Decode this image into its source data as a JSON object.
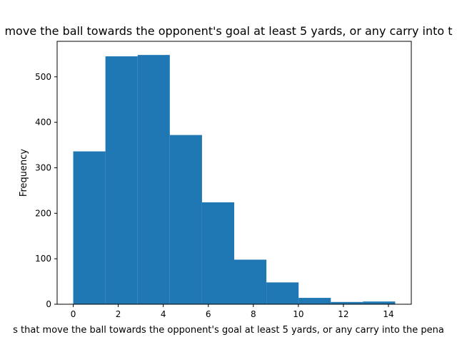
{
  "chart_data": {
    "type": "bar",
    "title": "move the ball towards the opponent's goal at least 5 yards, or any carry into t",
    "xlabel": "s that move the ball towards the opponent's goal at least 5 yards, or any carry into the pena",
    "ylabel": "Frequency",
    "bins": [
      {
        "start": 0.0,
        "end": 1.43,
        "count": 336
      },
      {
        "start": 1.43,
        "end": 2.86,
        "count": 545
      },
      {
        "start": 2.86,
        "end": 4.29,
        "count": 548
      },
      {
        "start": 4.29,
        "end": 5.72,
        "count": 372
      },
      {
        "start": 5.72,
        "end": 7.15,
        "count": 224
      },
      {
        "start": 7.15,
        "end": 8.58,
        "count": 98
      },
      {
        "start": 8.58,
        "end": 10.01,
        "count": 48
      },
      {
        "start": 10.01,
        "end": 11.44,
        "count": 14
      },
      {
        "start": 11.44,
        "end": 12.87,
        "count": 5
      },
      {
        "start": 12.87,
        "end": 14.3,
        "count": 6
      }
    ],
    "xlim": [
      -0.715,
      15.015
    ],
    "ylim": [
      0,
      578
    ],
    "xticks": [
      "0",
      "2",
      "4",
      "6",
      "8",
      "10",
      "12",
      "14"
    ],
    "yticks": [
      "0",
      "100",
      "200",
      "300",
      "400",
      "500"
    ],
    "grid": false,
    "bar_color": "#1f77b4"
  }
}
